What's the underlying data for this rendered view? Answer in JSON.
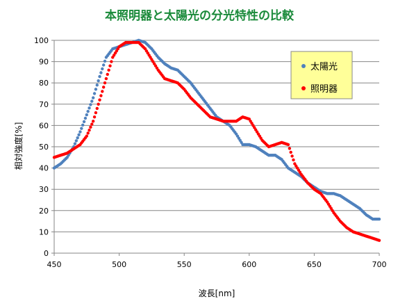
{
  "chart_data": {
    "type": "scatter",
    "title": "本照明器と太陽光の分光特性の比較",
    "xlabel": "波長[nm]",
    "ylabel": "相対強度[%]",
    "xlim": [
      450,
      700
    ],
    "ylim": [
      0,
      100
    ],
    "xticks": [
      450,
      500,
      550,
      600,
      650,
      700
    ],
    "yticks": [
      0,
      10,
      20,
      30,
      40,
      50,
      60,
      70,
      80,
      90,
      100
    ],
    "grid": "horizontal",
    "legend_position": "right",
    "series": [
      {
        "name": "太陽光",
        "color": "#4f81bd",
        "points": [
          [
            450,
            40
          ],
          [
            455,
            42
          ],
          [
            460,
            45
          ],
          [
            465,
            50
          ],
          [
            470,
            57
          ],
          [
            475,
            65
          ],
          [
            480,
            73
          ],
          [
            485,
            83
          ],
          [
            490,
            92
          ],
          [
            495,
            96
          ],
          [
            500,
            97
          ],
          [
            505,
            98
          ],
          [
            510,
            99
          ],
          [
            515,
            100
          ],
          [
            520,
            99
          ],
          [
            525,
            96
          ],
          [
            530,
            92
          ],
          [
            535,
            89
          ],
          [
            540,
            87
          ],
          [
            545,
            86
          ],
          [
            550,
            83
          ],
          [
            555,
            80
          ],
          [
            560,
            76
          ],
          [
            565,
            72
          ],
          [
            570,
            68
          ],
          [
            575,
            64
          ],
          [
            580,
            62
          ],
          [
            585,
            60
          ],
          [
            590,
            56
          ],
          [
            595,
            51
          ],
          [
            600,
            51
          ],
          [
            605,
            50
          ],
          [
            610,
            48
          ],
          [
            615,
            46
          ],
          [
            620,
            46
          ],
          [
            625,
            44
          ],
          [
            630,
            40
          ],
          [
            635,
            38
          ],
          [
            640,
            36
          ],
          [
            645,
            33
          ],
          [
            650,
            31
          ],
          [
            655,
            29
          ],
          [
            660,
            28
          ],
          [
            665,
            28
          ],
          [
            670,
            27
          ],
          [
            675,
            25
          ],
          [
            680,
            23
          ],
          [
            685,
            21
          ],
          [
            690,
            18
          ],
          [
            695,
            16
          ],
          [
            700,
            16
          ]
        ]
      },
      {
        "name": "照明器",
        "color": "#ff0000",
        "points": [
          [
            450,
            45
          ],
          [
            455,
            46
          ],
          [
            460,
            47
          ],
          [
            465,
            49
          ],
          [
            470,
            51
          ],
          [
            475,
            55
          ],
          [
            480,
            62
          ],
          [
            485,
            72
          ],
          [
            490,
            82
          ],
          [
            495,
            92
          ],
          [
            500,
            97
          ],
          [
            505,
            99
          ],
          [
            510,
            99
          ],
          [
            515,
            99
          ],
          [
            520,
            96
          ],
          [
            525,
            91
          ],
          [
            530,
            86
          ],
          [
            535,
            82
          ],
          [
            540,
            81
          ],
          [
            545,
            80
          ],
          [
            550,
            77
          ],
          [
            555,
            73
          ],
          [
            560,
            70
          ],
          [
            565,
            67
          ],
          [
            570,
            64
          ],
          [
            575,
            63
          ],
          [
            580,
            62
          ],
          [
            585,
            62
          ],
          [
            590,
            62
          ],
          [
            595,
            64
          ],
          [
            600,
            63
          ],
          [
            605,
            58
          ],
          [
            610,
            53
          ],
          [
            615,
            50
          ],
          [
            620,
            51
          ],
          [
            625,
            52
          ],
          [
            630,
            51
          ],
          [
            635,
            42
          ],
          [
            640,
            37
          ],
          [
            645,
            33
          ],
          [
            650,
            30
          ],
          [
            655,
            28
          ],
          [
            660,
            24
          ],
          [
            665,
            19
          ],
          [
            670,
            15
          ],
          [
            675,
            12
          ],
          [
            680,
            10
          ],
          [
            685,
            9
          ],
          [
            690,
            8
          ],
          [
            695,
            7
          ],
          [
            700,
            6
          ]
        ]
      }
    ]
  }
}
